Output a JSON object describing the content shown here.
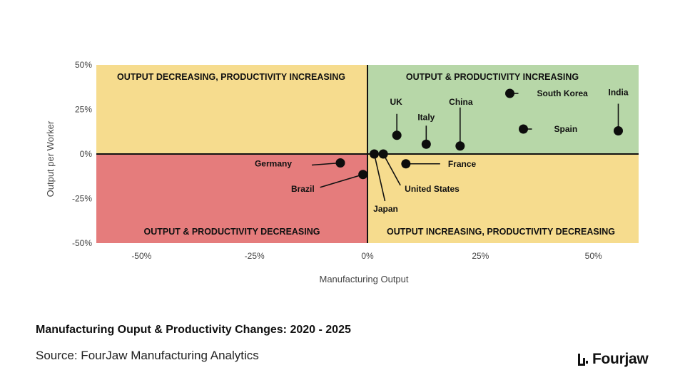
{
  "chart_data": {
    "type": "scatter",
    "title": "",
    "xlabel": "Manufacturing Output",
    "ylabel": "Output per Worker",
    "xlim": [
      -60,
      60
    ],
    "ylim": [
      -50,
      50
    ],
    "x_ticks": [
      -50,
      -25,
      0,
      25,
      50
    ],
    "y_ticks": [
      -50,
      -25,
      0,
      25,
      50
    ],
    "x_tick_labels": [
      "-50%",
      "-25%",
      "0%",
      "25%",
      "50%"
    ],
    "y_tick_labels": [
      "-50%",
      "-25%",
      "0%",
      "25%",
      "50%"
    ],
    "grid": false,
    "quadrants": [
      {
        "name": "top-left",
        "label": "OUTPUT DECREASING, PRODUCTIVITY INCREASING",
        "color": "#f6dc8e"
      },
      {
        "name": "top-right",
        "label": "OUTPUT & PRODUCTIVITY INCREASING",
        "color": "#b7d7a8"
      },
      {
        "name": "bottom-left",
        "label": "OUTPUT & PRODUCTIVITY DECREASING",
        "color": "#e57c7c"
      },
      {
        "name": "bottom-right",
        "label": "OUTPUT INCREASING, PRODUCTIVITY DECREASING",
        "color": "#f6dc8e"
      }
    ],
    "points": [
      {
        "label": "South Korea",
        "x": 31.5,
        "y": 34
      },
      {
        "label": "India",
        "x": 55.5,
        "y": 13
      },
      {
        "label": "Spain",
        "x": 34.5,
        "y": 14
      },
      {
        "label": "UK",
        "x": 6.5,
        "y": 10.5
      },
      {
        "label": "Italy",
        "x": 13,
        "y": 5.5
      },
      {
        "label": "China",
        "x": 20.5,
        "y": 4.5
      },
      {
        "label": "United States",
        "x": 3.5,
        "y": 0
      },
      {
        "label": "Japan",
        "x": 1.5,
        "y": 0
      },
      {
        "label": "France",
        "x": 8.5,
        "y": -5.5
      },
      {
        "label": "Germany",
        "x": -6,
        "y": -5
      },
      {
        "label": "Brazil",
        "x": -1,
        "y": -11.5
      }
    ]
  },
  "caption": {
    "title": "Manufacturing Ouput & Productivity Changes: 2020 - 2025",
    "source": "Source: FourJaw Manufacturing Analytics"
  },
  "brand": {
    "name": "Fourjaw",
    "icon": "fourjaw-logo-icon"
  }
}
